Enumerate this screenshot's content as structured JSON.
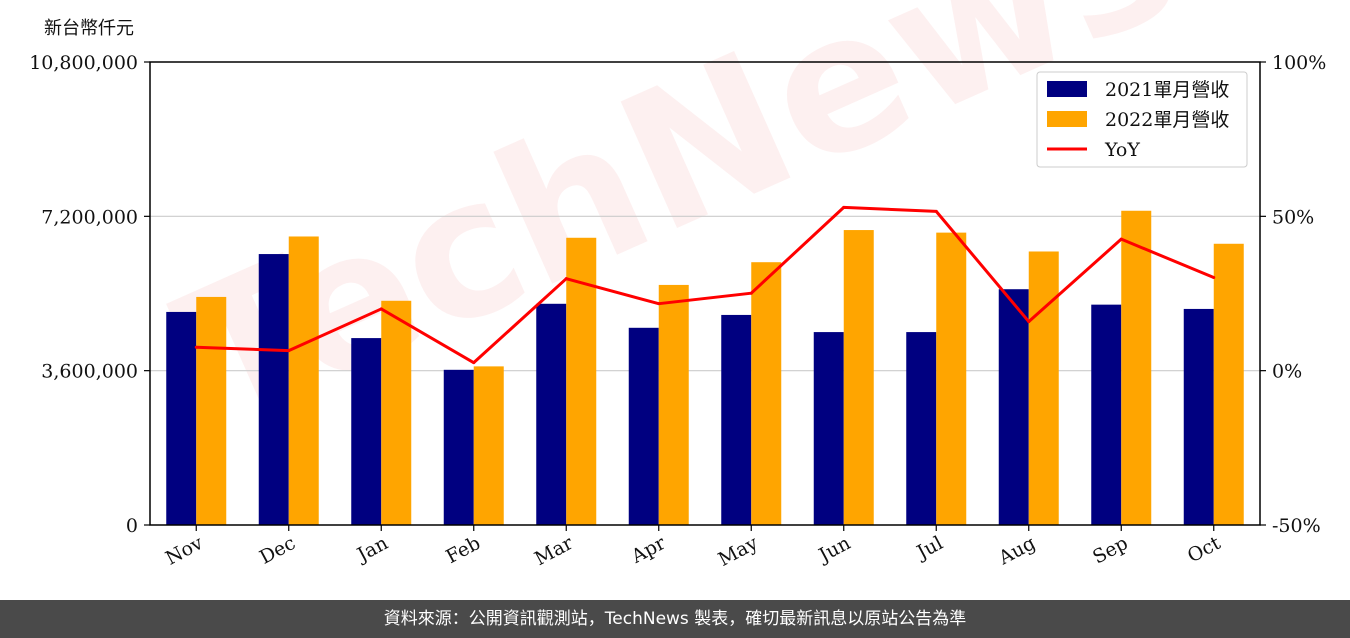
{
  "y_unit_label": "新台幣仟元",
  "watermark": "TechNews",
  "footer": "資料來源：公開資訊觀測站，TechNews 製表，確切最新訊息以原站公告為準",
  "colors": {
    "series_2021": "#000080",
    "series_2022": "#FFA500",
    "yoy": "#FF0000",
    "grid": "#cccccc"
  },
  "chart_data": {
    "type": "bar",
    "categories": [
      "Nov",
      "Dec",
      "Jan",
      "Feb",
      "Mar",
      "Apr",
      "May",
      "Jun",
      "Jul",
      "Aug",
      "Sep",
      "Oct"
    ],
    "series": [
      {
        "name": "2021單月營收",
        "type": "bar",
        "axis": "left",
        "values": [
          4970000,
          6320000,
          4360000,
          3620000,
          5160000,
          4600000,
          4900000,
          4500000,
          4500000,
          5500000,
          5140000,
          5040000
        ]
      },
      {
        "name": "2022單月營收",
        "type": "bar",
        "axis": "left",
        "values": [
          5320000,
          6730000,
          5230000,
          3700000,
          6700000,
          5600000,
          6130000,
          6880000,
          6820000,
          6380000,
          7330000,
          6560000
        ]
      },
      {
        "name": "YoY",
        "type": "line",
        "axis": "right",
        "values": [
          7.6,
          6.5,
          20.0,
          2.6,
          29.8,
          21.7,
          25.1,
          52.9,
          51.6,
          15.9,
          42.6,
          30.2
        ]
      }
    ],
    "y_left": {
      "ylim": [
        0,
        10800000
      ],
      "ticks": [
        "0",
        "3,600,000",
        "7,200,000",
        "10,800,000"
      ],
      "tick_values": [
        0,
        3600000,
        7200000,
        10800000
      ]
    },
    "y_right": {
      "ylim": [
        -50,
        100
      ],
      "ticks": [
        "-50%",
        "0%",
        "50%",
        "100%"
      ],
      "tick_values": [
        -50,
        0,
        50,
        100
      ]
    },
    "grid": "horizontal",
    "legend_position": "top-right"
  }
}
